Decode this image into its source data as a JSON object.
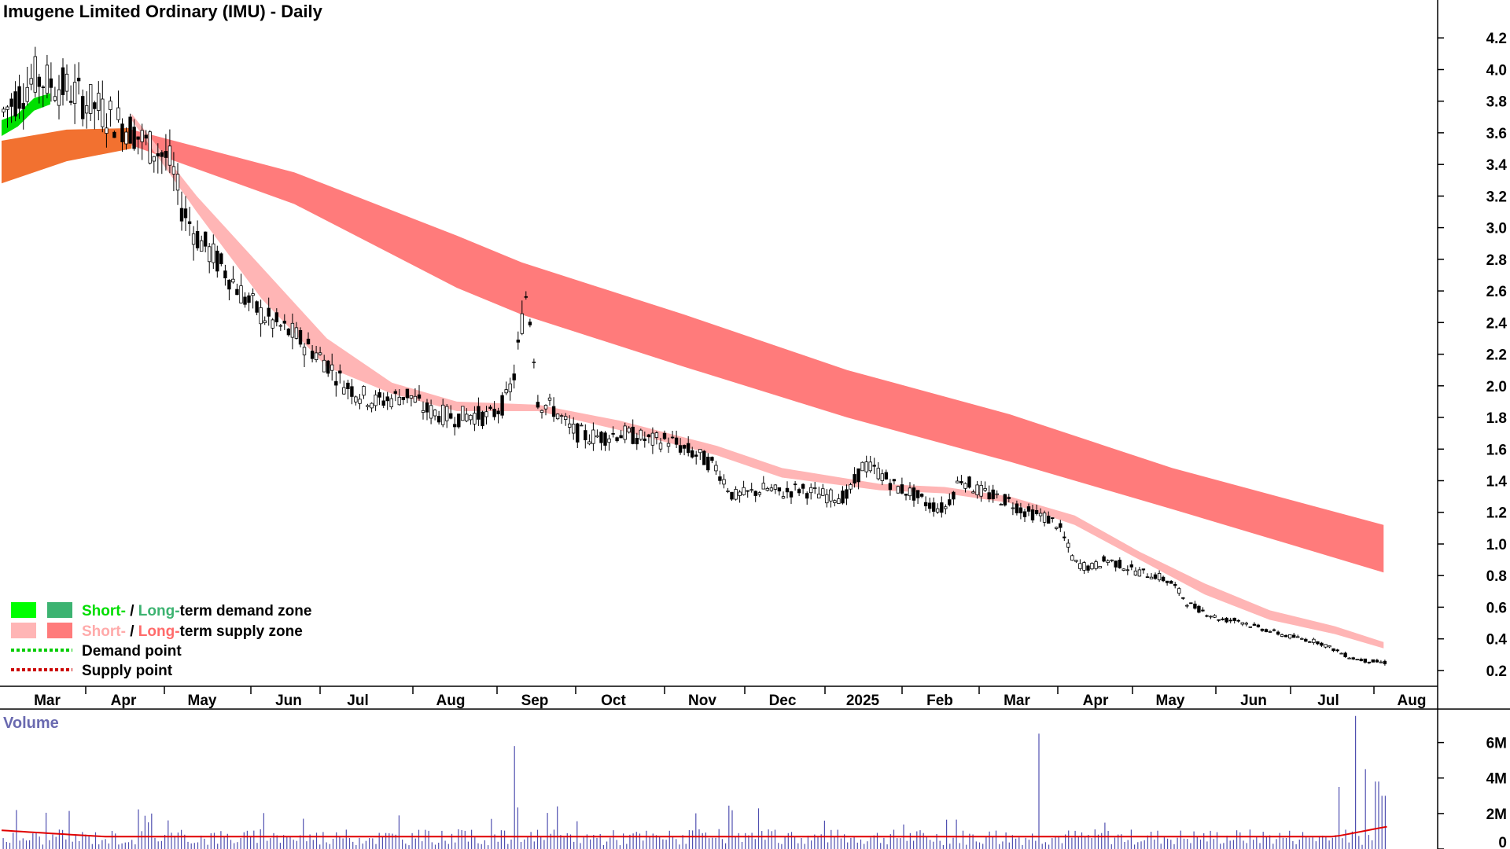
{
  "chart_data": {
    "type": "candlestick",
    "title": "Imugene Limited Ordinary (IMU) - Daily",
    "price_axis": {
      "ylim": [
        0.1,
        4.4
      ],
      "ticks": [
        "4.2",
        "4.0",
        "3.8",
        "3.6",
        "3.4",
        "3.2",
        "3.0",
        "2.8",
        "2.6",
        "2.4",
        "2.2",
        "2.0",
        "1.8",
        "1.6",
        "1.4",
        "1.2",
        "1.0",
        "0.8",
        "0.6",
        "0.4",
        "0.2"
      ]
    },
    "x_axis": {
      "ticks": [
        "Mar",
        "Apr",
        "May",
        "Jun",
        "Jul",
        "Aug",
        "Sep",
        "Oct",
        "Nov",
        "Dec",
        "2025",
        "Feb",
        "Mar",
        "Apr",
        "May",
        "Jun",
        "Jul",
        "Aug"
      ]
    },
    "price_path": [
      [
        0,
        3.72
      ],
      [
        2,
        3.95
      ],
      [
        4,
        3.88
      ],
      [
        6,
        3.75
      ],
      [
        8,
        3.62
      ],
      [
        9,
        3.52
      ],
      [
        10,
        3.46
      ],
      [
        10.5,
        3.38
      ],
      [
        11,
        3.15
      ],
      [
        12,
        2.95
      ],
      [
        13,
        2.82
      ],
      [
        14,
        2.7
      ],
      [
        15,
        2.55
      ],
      [
        16,
        2.45
      ],
      [
        17,
        2.38
      ],
      [
        18,
        2.32
      ],
      [
        20,
        2.15
      ],
      [
        21,
        2.02
      ],
      [
        22,
        1.95
      ],
      [
        23,
        1.9
      ],
      [
        24,
        1.92
      ],
      [
        25,
        1.95
      ],
      [
        26,
        1.85
      ],
      [
        27,
        1.82
      ],
      [
        28,
        1.8
      ],
      [
        29,
        1.82
      ],
      [
        30,
        1.8
      ],
      [
        31,
        1.9
      ],
      [
        31.5,
        2.05
      ],
      [
        32,
        2.4
      ],
      [
        32.3,
        2.6
      ],
      [
        32.7,
        2.25
      ],
      [
        33,
        1.9
      ],
      [
        34,
        1.85
      ],
      [
        35,
        1.72
      ],
      [
        36,
        1.68
      ],
      [
        37,
        1.68
      ],
      [
        38,
        1.7
      ],
      [
        39,
        1.68
      ],
      [
        40,
        1.65
      ],
      [
        41,
        1.66
      ],
      [
        42,
        1.6
      ],
      [
        43,
        1.55
      ],
      [
        44,
        1.48
      ],
      [
        45,
        1.3
      ],
      [
        46,
        1.32
      ],
      [
        47,
        1.35
      ],
      [
        48,
        1.32
      ],
      [
        49,
        1.35
      ],
      [
        50,
        1.32
      ],
      [
        51,
        1.3
      ],
      [
        52,
        1.3
      ],
      [
        53,
        1.5
      ],
      [
        54,
        1.45
      ],
      [
        55,
        1.36
      ],
      [
        56,
        1.32
      ],
      [
        57,
        1.25
      ],
      [
        58,
        1.22
      ],
      [
        59,
        1.42
      ],
      [
        60,
        1.34
      ],
      [
        61,
        1.3
      ],
      [
        62,
        1.27
      ],
      [
        63,
        1.2
      ],
      [
        64,
        1.18
      ],
      [
        65,
        1.12
      ],
      [
        66,
        0.88
      ],
      [
        67,
        0.85
      ],
      [
        68,
        0.9
      ],
      [
        69,
        0.86
      ],
      [
        70,
        0.82
      ],
      [
        71,
        0.8
      ],
      [
        72,
        0.75
      ],
      [
        73,
        0.62
      ],
      [
        74,
        0.57
      ],
      [
        75,
        0.52
      ],
      [
        76,
        0.52
      ],
      [
        77,
        0.48
      ],
      [
        78,
        0.45
      ],
      [
        79,
        0.42
      ],
      [
        80,
        0.4
      ],
      [
        81,
        0.38
      ],
      [
        82,
        0.33
      ],
      [
        83,
        0.28
      ],
      [
        84,
        0.26
      ],
      [
        85,
        0.25
      ]
    ],
    "zones": {
      "long_term_supply": {
        "color": "#ff7b7b",
        "upper": [
          [
            8,
            3.62
          ],
          [
            18,
            3.35
          ],
          [
            28,
            2.95
          ],
          [
            32,
            2.78
          ],
          [
            42,
            2.45
          ],
          [
            52,
            2.1
          ],
          [
            62,
            1.82
          ],
          [
            72,
            1.48
          ],
          [
            85,
            1.12
          ]
        ],
        "lower": [
          [
            8,
            3.52
          ],
          [
            18,
            3.15
          ],
          [
            28,
            2.62
          ],
          [
            32,
            2.45
          ],
          [
            42,
            2.12
          ],
          [
            52,
            1.8
          ],
          [
            62,
            1.52
          ],
          [
            72,
            1.22
          ],
          [
            85,
            0.82
          ]
        ]
      },
      "long_term_supply_early": {
        "color": "#f27130",
        "upper": [
          [
            0,
            3.55
          ],
          [
            4,
            3.62
          ],
          [
            8,
            3.63
          ]
        ],
        "lower": [
          [
            0,
            3.28
          ],
          [
            4,
            3.42
          ],
          [
            8,
            3.5
          ]
        ]
      },
      "short_term_supply": {
        "color": "#ffb5b5",
        "upper": [
          [
            8,
            3.72
          ],
          [
            12,
            3.2
          ],
          [
            16,
            2.75
          ],
          [
            20,
            2.3
          ],
          [
            24,
            2.02
          ],
          [
            28,
            1.9
          ],
          [
            33,
            1.88
          ],
          [
            38,
            1.78
          ],
          [
            44,
            1.62
          ],
          [
            48,
            1.48
          ],
          [
            54,
            1.38
          ],
          [
            58,
            1.36
          ],
          [
            62,
            1.3
          ],
          [
            66,
            1.18
          ],
          [
            70,
            0.95
          ],
          [
            74,
            0.75
          ],
          [
            78,
            0.58
          ],
          [
            82,
            0.48
          ],
          [
            85,
            0.38
          ]
        ],
        "lower": [
          [
            8,
            3.68
          ],
          [
            12,
            3.1
          ],
          [
            16,
            2.55
          ],
          [
            20,
            2.12
          ],
          [
            24,
            1.95
          ],
          [
            28,
            1.84
          ],
          [
            33,
            1.84
          ],
          [
            38,
            1.72
          ],
          [
            44,
            1.56
          ],
          [
            48,
            1.42
          ],
          [
            54,
            1.34
          ],
          [
            58,
            1.32
          ],
          [
            62,
            1.26
          ],
          [
            66,
            1.12
          ],
          [
            70,
            0.9
          ],
          [
            74,
            0.68
          ],
          [
            78,
            0.52
          ],
          [
            82,
            0.43
          ],
          [
            85,
            0.34
          ]
        ]
      },
      "short_term_demand": {
        "color": "#00e000",
        "upper": [
          [
            0,
            3.68
          ],
          [
            1,
            3.72
          ],
          [
            2,
            3.82
          ],
          [
            3,
            3.85
          ]
        ],
        "lower": [
          [
            0,
            3.58
          ],
          [
            1,
            3.64
          ],
          [
            2,
            3.74
          ],
          [
            3,
            3.78
          ]
        ]
      }
    },
    "volume": {
      "label": "Volume",
      "ylim": [
        0,
        7000000
      ],
      "ticks": [
        "6M",
        "4M",
        "2M",
        "0"
      ],
      "baseline_avg": 700000,
      "spikes": [
        [
          9,
          1500000
        ],
        [
          9.3,
          2000000
        ],
        [
          31.6,
          5800000
        ],
        [
          34.2,
          2400000
        ],
        [
          63.8,
          6500000
        ],
        [
          82.2,
          3500000
        ],
        [
          83.3,
          7500000
        ],
        [
          83.8,
          4500000
        ],
        [
          84.6,
          3800000
        ],
        [
          85,
          3000000
        ]
      ]
    },
    "legend": [
      {
        "label_a": "Short-",
        "sep": " / ",
        "label_b": "Long-",
        "rest": "term demand zone",
        "color_a": "#00ff00",
        "color_b": "#3cb371"
      },
      {
        "label_a": "Short-",
        "sep": " / ",
        "label_b": "Long-",
        "rest": "term supply zone",
        "color_a": "#ffb5b5",
        "color_b": "#ff7b7b"
      },
      {
        "label": "Demand point",
        "color": "#00cc00"
      },
      {
        "label": "Supply point",
        "color": "#cc0000"
      }
    ],
    "colors": {
      "candle": "#000000",
      "volume_bar": "#5050b0",
      "volume_avg": "#e00000",
      "volume_label": "#6a6ab0"
    }
  }
}
